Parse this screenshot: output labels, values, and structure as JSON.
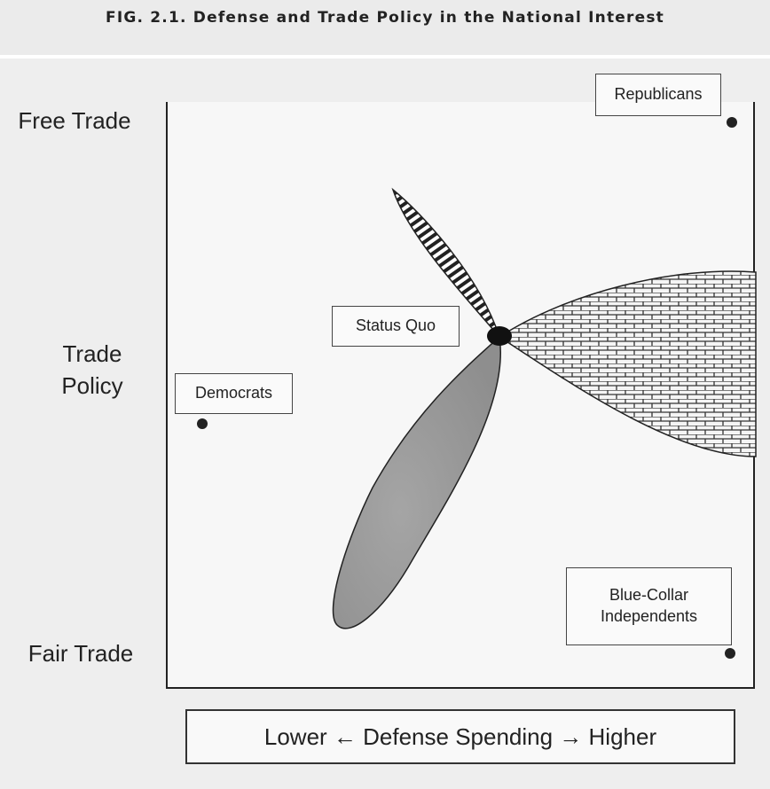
{
  "figure": {
    "title": "FIG. 2.1. Defense and Trade Policy in the National Interest"
  },
  "y_axis": {
    "top_label": "Free Trade",
    "middle_label_line1": "Trade",
    "middle_label_line2": "Policy",
    "bottom_label": "Fair Trade"
  },
  "x_axis": {
    "label": "Lower ← Defense Spending → Higher"
  },
  "points": {
    "republicans": "Republicans",
    "democrats": "Democrats",
    "status_quo": "Status Quo",
    "blue_collar_line1": "Blue-Collar",
    "blue_collar_line2": "Independents"
  }
}
